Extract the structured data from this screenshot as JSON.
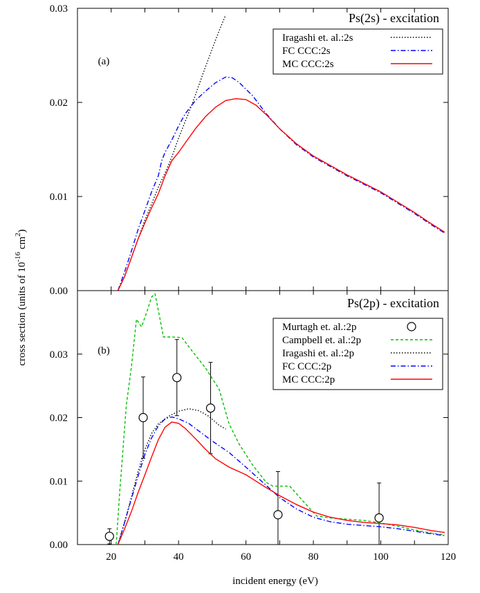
{
  "ylabel": "cross section  (units of 10",
  "ylabel_exp": "-16",
  "ylabel_unit": " cm",
  "ylabel_unit_exp": "2",
  "ylabel_close": ")",
  "xlabel": "incident energy (eV)",
  "chart_data": [
    {
      "type": "line",
      "title": "Ps(2s) - excitation",
      "panel_label": "(a)",
      "xlim": [
        10,
        120
      ],
      "ylim": [
        0,
        0.03
      ],
      "yticks": [
        "0.00",
        "0.01",
        "0.02",
        "0.03"
      ],
      "legend_position": "top-right",
      "series": [
        {
          "name": "Iragashi et. al.:2s",
          "color": "#000000",
          "dash": "dot",
          "points": [
            [
              22,
              0.0
            ],
            [
              24,
              0.0015
            ],
            [
              26,
              0.0035
            ],
            [
              28,
              0.0055
            ],
            [
              30,
              0.0075
            ],
            [
              32,
              0.0092
            ],
            [
              34,
              0.011
            ],
            [
              36,
              0.0125
            ],
            [
              38,
              0.0142
            ],
            [
              40,
              0.0162
            ],
            [
              42,
              0.018
            ],
            [
              44,
              0.0198
            ],
            [
              46,
              0.0218
            ],
            [
              48,
              0.0238
            ],
            [
              50,
              0.0257
            ],
            [
              52,
              0.0276
            ],
            [
              54,
              0.0293
            ]
          ]
        },
        {
          "name": "FC CCC:2s",
          "color": "#0000ff",
          "dash": "dashdot",
          "points": [
            [
              22,
              0.0
            ],
            [
              24,
              0.002
            ],
            [
              26,
              0.0042
            ],
            [
              28,
              0.0065
            ],
            [
              30,
              0.0085
            ],
            [
              32,
              0.0105
            ],
            [
              34,
              0.0122
            ],
            [
              35,
              0.0138
            ],
            [
              36,
              0.0147
            ],
            [
              38,
              0.016
            ],
            [
              40,
              0.0175
            ],
            [
              42,
              0.0188
            ],
            [
              45,
              0.0202
            ],
            [
              48,
              0.0212
            ],
            [
              51,
              0.0221
            ],
            [
              54,
              0.0227
            ],
            [
              56,
              0.0226
            ],
            [
              58,
              0.0221
            ],
            [
              62,
              0.0207
            ],
            [
              66,
              0.0188
            ],
            [
              70,
              0.0172
            ],
            [
              75,
              0.0155
            ],
            [
              80,
              0.0142
            ],
            [
              85,
              0.0132
            ],
            [
              90,
              0.0122
            ],
            [
              95,
              0.0113
            ],
            [
              100,
              0.0104
            ],
            [
              105,
              0.0093
            ],
            [
              110,
              0.0082
            ],
            [
              115,
              0.007
            ],
            [
              119,
              0.0061
            ]
          ]
        },
        {
          "name": "MC CCC:2s",
          "color": "#ff0000",
          "dash": "solid",
          "points": [
            [
              22,
              0.0
            ],
            [
              24,
              0.0015
            ],
            [
              26,
              0.0035
            ],
            [
              28,
              0.0055
            ],
            [
              30,
              0.0072
            ],
            [
              32,
              0.0088
            ],
            [
              34,
              0.0103
            ],
            [
              36,
              0.0122
            ],
            [
              38,
              0.0138
            ],
            [
              40,
              0.0147
            ],
            [
              42,
              0.0157
            ],
            [
              45,
              0.0172
            ],
            [
              48,
              0.0185
            ],
            [
              51,
              0.0195
            ],
            [
              54,
              0.0202
            ],
            [
              57,
              0.0204
            ],
            [
              60,
              0.0203
            ],
            [
              63,
              0.0197
            ],
            [
              66,
              0.0187
            ],
            [
              70,
              0.0172
            ],
            [
              75,
              0.0156
            ],
            [
              80,
              0.0143
            ],
            [
              85,
              0.0133
            ],
            [
              90,
              0.0123
            ],
            [
              95,
              0.0114
            ],
            [
              100,
              0.0105
            ],
            [
              105,
              0.0094
            ],
            [
              110,
              0.0083
            ],
            [
              115,
              0.0071
            ],
            [
              119,
              0.0062
            ]
          ]
        }
      ]
    },
    {
      "type": "line",
      "title": "Ps(2p) - excitation",
      "panel_label": "(b)",
      "xlim": [
        10,
        120
      ],
      "ylim": [
        0,
        0.04
      ],
      "yticks": [
        "0.00",
        "0.01",
        "0.02",
        "0.03"
      ],
      "xticks": [
        "20",
        "40",
        "60",
        "80",
        "100",
        "120"
      ],
      "legend_position": "top-right",
      "series": [
        {
          "name": "Murtagh et. al.:2p",
          "marker": "circle",
          "points": [
            {
              "x": 19.5,
              "y": 0.0013,
              "err": 0.0012
            },
            {
              "x": 29.5,
              "y": 0.02,
              "err": 0.0064
            },
            {
              "x": 39.5,
              "y": 0.0263,
              "err": 0.006
            },
            {
              "x": 49.5,
              "y": 0.0215,
              "err": 0.0072
            },
            {
              "x": 69.5,
              "y": 0.0047,
              "err": 0.0068
            },
            {
              "x": 99.5,
              "y": 0.0042,
              "err": 0.0055
            }
          ]
        },
        {
          "name": "Campbell et. al.:2p",
          "color": "#00c000",
          "dash": "dash",
          "points": [
            [
              21.5,
              0.0
            ],
            [
              22.5,
              0.008
            ],
            [
              23.5,
              0.015
            ],
            [
              24.5,
              0.022
            ],
            [
              26,
              0.028
            ],
            [
              27.5,
              0.0355
            ],
            [
              29,
              0.0343
            ],
            [
              30.5,
              0.0365
            ],
            [
              32,
              0.039
            ],
            [
              33,
              0.0395
            ],
            [
              34.5,
              0.0355
            ],
            [
              35.5,
              0.0327
            ],
            [
              38,
              0.0327
            ],
            [
              41,
              0.0326
            ],
            [
              44,
              0.0305
            ],
            [
              48,
              0.0278
            ],
            [
              52,
              0.0245
            ],
            [
              55,
              0.019
            ],
            [
              58,
              0.0158
            ],
            [
              62,
              0.0125
            ],
            [
              66,
              0.0098
            ],
            [
              68,
              0.0092
            ],
            [
              73,
              0.0092
            ],
            [
              77,
              0.0068
            ],
            [
              81,
              0.0045
            ],
            [
              85,
              0.0042
            ],
            [
              90,
              0.004
            ],
            [
              95,
              0.0038
            ],
            [
              100,
              0.0034
            ],
            [
              105,
              0.0029
            ],
            [
              110,
              0.0023
            ],
            [
              115,
              0.0018
            ],
            [
              119,
              0.0015
            ]
          ]
        },
        {
          "name": "Iragashi et. al.:2p",
          "color": "#000000",
          "dash": "dot",
          "points": [
            [
              22,
              0.0
            ],
            [
              24,
              0.0035
            ],
            [
              26,
              0.0075
            ],
            [
              28,
              0.0115
            ],
            [
              30,
              0.015
            ],
            [
              32,
              0.0175
            ],
            [
              34,
              0.019
            ],
            [
              37,
              0.0202
            ],
            [
              40,
              0.021
            ],
            [
              43,
              0.0214
            ],
            [
              46,
              0.0211
            ],
            [
              49,
              0.0202
            ],
            [
              52,
              0.0188
            ],
            [
              54,
              0.0182
            ]
          ]
        },
        {
          "name": "FC CCC:2p",
          "color": "#0000ff",
          "dash": "dashdot",
          "points": [
            [
              22,
              0.0
            ],
            [
              24,
              0.0035
            ],
            [
              26,
              0.0072
            ],
            [
              28,
              0.0108
            ],
            [
              30,
              0.0142
            ],
            [
              32,
              0.0168
            ],
            [
              34,
              0.0187
            ],
            [
              36,
              0.0198
            ],
            [
              38,
              0.0201
            ],
            [
              40,
              0.0198
            ],
            [
              43,
              0.0191
            ],
            [
              46,
              0.0179
            ],
            [
              50,
              0.0163
            ],
            [
              55,
              0.0145
            ],
            [
              60,
              0.0122
            ],
            [
              65,
              0.0098
            ],
            [
              70,
              0.0074
            ],
            [
              75,
              0.0056
            ],
            [
              80,
              0.0043
            ],
            [
              85,
              0.0036
            ],
            [
              90,
              0.0032
            ],
            [
              95,
              0.003
            ],
            [
              100,
              0.0028
            ],
            [
              105,
              0.0025
            ],
            [
              110,
              0.0021
            ],
            [
              115,
              0.0017
            ],
            [
              119,
              0.0014
            ]
          ]
        },
        {
          "name": "MC CCC:2p",
          "color": "#ff0000",
          "dash": "solid",
          "points": [
            [
              22,
              0.0
            ],
            [
              24,
              0.0025
            ],
            [
              26,
              0.0052
            ],
            [
              28,
              0.0082
            ],
            [
              30,
              0.011
            ],
            [
              32,
              0.0138
            ],
            [
              34,
              0.0165
            ],
            [
              36,
              0.0185
            ],
            [
              38,
              0.0193
            ],
            [
              40,
              0.0191
            ],
            [
              42,
              0.0183
            ],
            [
              45,
              0.0167
            ],
            [
              48,
              0.015
            ],
            [
              51,
              0.0135
            ],
            [
              55,
              0.0122
            ],
            [
              60,
              0.011
            ],
            [
              65,
              0.0093
            ],
            [
              70,
              0.0077
            ],
            [
              75,
              0.0063
            ],
            [
              80,
              0.0051
            ],
            [
              85,
              0.0043
            ],
            [
              90,
              0.0038
            ],
            [
              95,
              0.0035
            ],
            [
              100,
              0.0033
            ],
            [
              105,
              0.0031
            ],
            [
              110,
              0.0027
            ],
            [
              115,
              0.0022
            ],
            [
              119,
              0.0019
            ]
          ]
        }
      ]
    }
  ]
}
